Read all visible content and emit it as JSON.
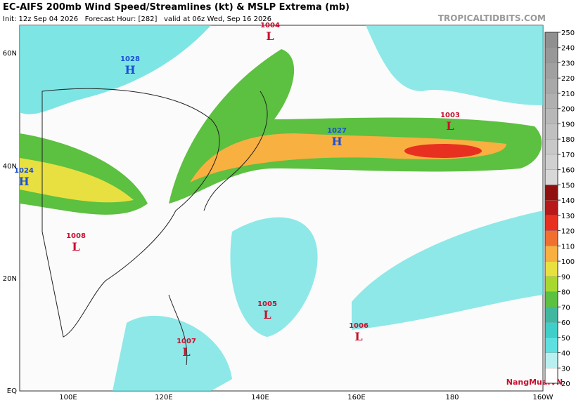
{
  "header": {
    "title": "EC-AIFS 200mb Wind Speed/Streamlines (kt) & MSLP Extrema (mb)",
    "subtitle": "Init: 12z Sep 04 2026   Forecast Hour: [282]   valid at 06z Wed, Sep 16 2026",
    "source": "TROPICALTIDBITS.COM"
  },
  "map": {
    "lat_labels": [
      "60N",
      "40N",
      "20N",
      "EQ"
    ],
    "lon_labels": [
      "100E",
      "120E",
      "140E",
      "160E",
      "180",
      "160W"
    ],
    "centers": [
      {
        "symbol": "H",
        "pressure": "1028"
      },
      {
        "symbol": "L",
        "pressure": "1004"
      },
      {
        "symbol": "H",
        "pressure": "1027"
      },
      {
        "symbol": "L",
        "pressure": "1003"
      },
      {
        "symbol": "H",
        "pressure": "1024"
      },
      {
        "symbol": "L",
        "pressure": "1008"
      },
      {
        "symbol": "L",
        "pressure": "1005"
      },
      {
        "symbol": "L",
        "pressure": "1006"
      },
      {
        "symbol": "L",
        "pressure": "1007"
      }
    ],
    "high_color": "#1a4fd6",
    "low_color": "#c8102e"
  },
  "colorbar": {
    "ticks": [
      20,
      30,
      40,
      50,
      60,
      70,
      80,
      90,
      100,
      110,
      120,
      130,
      140,
      150,
      160,
      170,
      180,
      190,
      200,
      210,
      220,
      230,
      240,
      250
    ],
    "colors": [
      "#ffffff",
      "#b8f0f0",
      "#5fe0e0",
      "#3fcfc8",
      "#40b8a0",
      "#5cc040",
      "#a8d830",
      "#e8e040",
      "#f8b040",
      "#f07030",
      "#e83020",
      "#b81818",
      "#901010",
      "#d8d8d8",
      "#d0d0d0",
      "#c8c8c8",
      "#c0c0c0",
      "#b8b8b8",
      "#b0b0b0",
      "#a8a8a8",
      "#a0a0a0",
      "#989898",
      "#909090"
    ]
  },
  "watermark": "NangMua.VN"
}
